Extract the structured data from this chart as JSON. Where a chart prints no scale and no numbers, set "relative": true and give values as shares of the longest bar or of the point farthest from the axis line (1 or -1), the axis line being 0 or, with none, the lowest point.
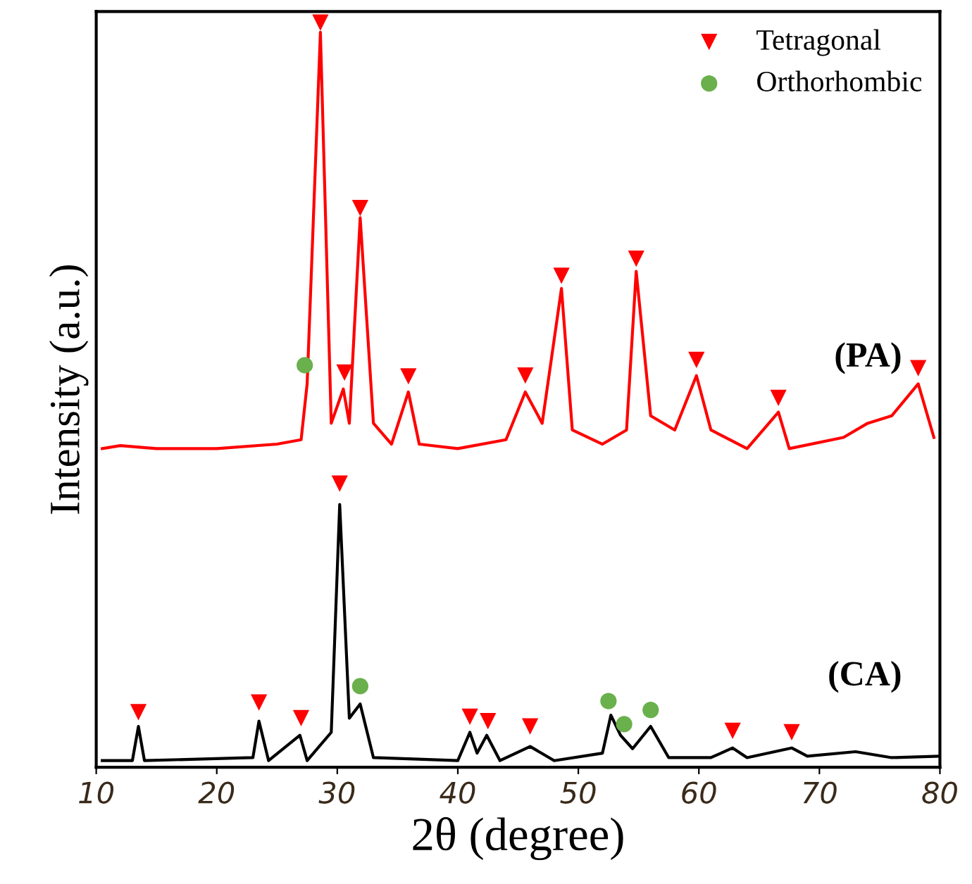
{
  "chart_data": {
    "type": "line",
    "relative": true,
    "xlabel": "2θ (degree)",
    "ylabel": "Intensity (a.u.)",
    "xlim": [
      10,
      80
    ],
    "xticks": [
      10,
      20,
      30,
      40,
      50,
      60,
      70,
      80
    ],
    "legend": "top right",
    "grid": false,
    "series": [
      {
        "color": "#ff0000",
        "x": [
          10.5,
          12,
          15,
          20,
          25,
          27,
          27.5,
          28.6,
          29.5,
          30.5,
          31,
          31.9,
          33,
          34.5,
          35.9,
          36.8,
          40,
          44,
          45.6,
          47,
          48.6,
          49.5,
          52,
          54,
          54.8,
          56,
          58,
          59.8,
          61,
          64,
          66.6,
          67.5,
          72,
          74,
          76,
          78.2,
          79.5
        ],
        "values": [
          0.428,
          0.432,
          0.428,
          0.428,
          0.434,
          0.44,
          0.515,
          0.987,
          0.462,
          0.508,
          0.462,
          0.738,
          0.462,
          0.434,
          0.504,
          0.434,
          0.428,
          0.44,
          0.504,
          0.462,
          0.643,
          0.453,
          0.434,
          0.453,
          0.666,
          0.472,
          0.453,
          0.526,
          0.453,
          0.428,
          0.477,
          0.428,
          0.443,
          0.462,
          0.472,
          0.515,
          0.443
        ]
      },
      {
        "color": "#000000",
        "x": [
          10.5,
          13,
          13.5,
          14,
          23,
          23.5,
          24.3,
          26.9,
          27.5,
          29.5,
          30.2,
          31,
          31.9,
          33,
          40,
          41,
          41.6,
          42.4,
          43.5,
          46,
          48,
          52,
          52.7,
          53.5,
          54.5,
          56,
          57.5,
          61,
          62.8,
          64,
          67.7,
          69,
          73,
          76,
          80
        ],
        "values": [
          0.009,
          0.009,
          0.055,
          0.009,
          0.013,
          0.062,
          0.009,
          0.043,
          0.009,
          0.047,
          0.353,
          0.066,
          0.085,
          0.013,
          0.009,
          0.047,
          0.019,
          0.043,
          0.009,
          0.028,
          0.009,
          0.019,
          0.07,
          0.043,
          0.025,
          0.055,
          0.013,
          0.013,
          0.026,
          0.013,
          0.026,
          0.015,
          0.021,
          0.013,
          0.015
        ]
      },
      {
        "name": "Tetragonal",
        "type": "scatter",
        "marker": "triangle",
        "color": "#ff0000",
        "x": [
          28.6,
          30.6,
          31.9,
          35.9,
          45.6,
          48.6,
          54.8,
          59.8,
          66.6,
          78.2,
          13.5,
          23.5,
          27,
          30.2,
          41,
          42.5,
          46,
          62.8,
          67.7
        ],
        "values": [
          1.0,
          0.53,
          0.751,
          0.525,
          0.526,
          0.66,
          0.683,
          0.547,
          0.496,
          0.536,
          0.074,
          0.087,
          0.066,
          0.381,
          0.068,
          0.062,
          0.055,
          0.049,
          0.047
        ]
      },
      {
        "name": "Orthorhombic",
        "type": "scatter",
        "marker": "circle",
        "color": "#6ab04c",
        "x": [
          27.3,
          31.9,
          52.5,
          53.8,
          56
        ],
        "values": [
          0.54,
          0.109,
          0.089,
          0.058,
          0.077
        ]
      }
    ],
    "annotations": [
      "(PA)",
      "(CA)"
    ]
  }
}
